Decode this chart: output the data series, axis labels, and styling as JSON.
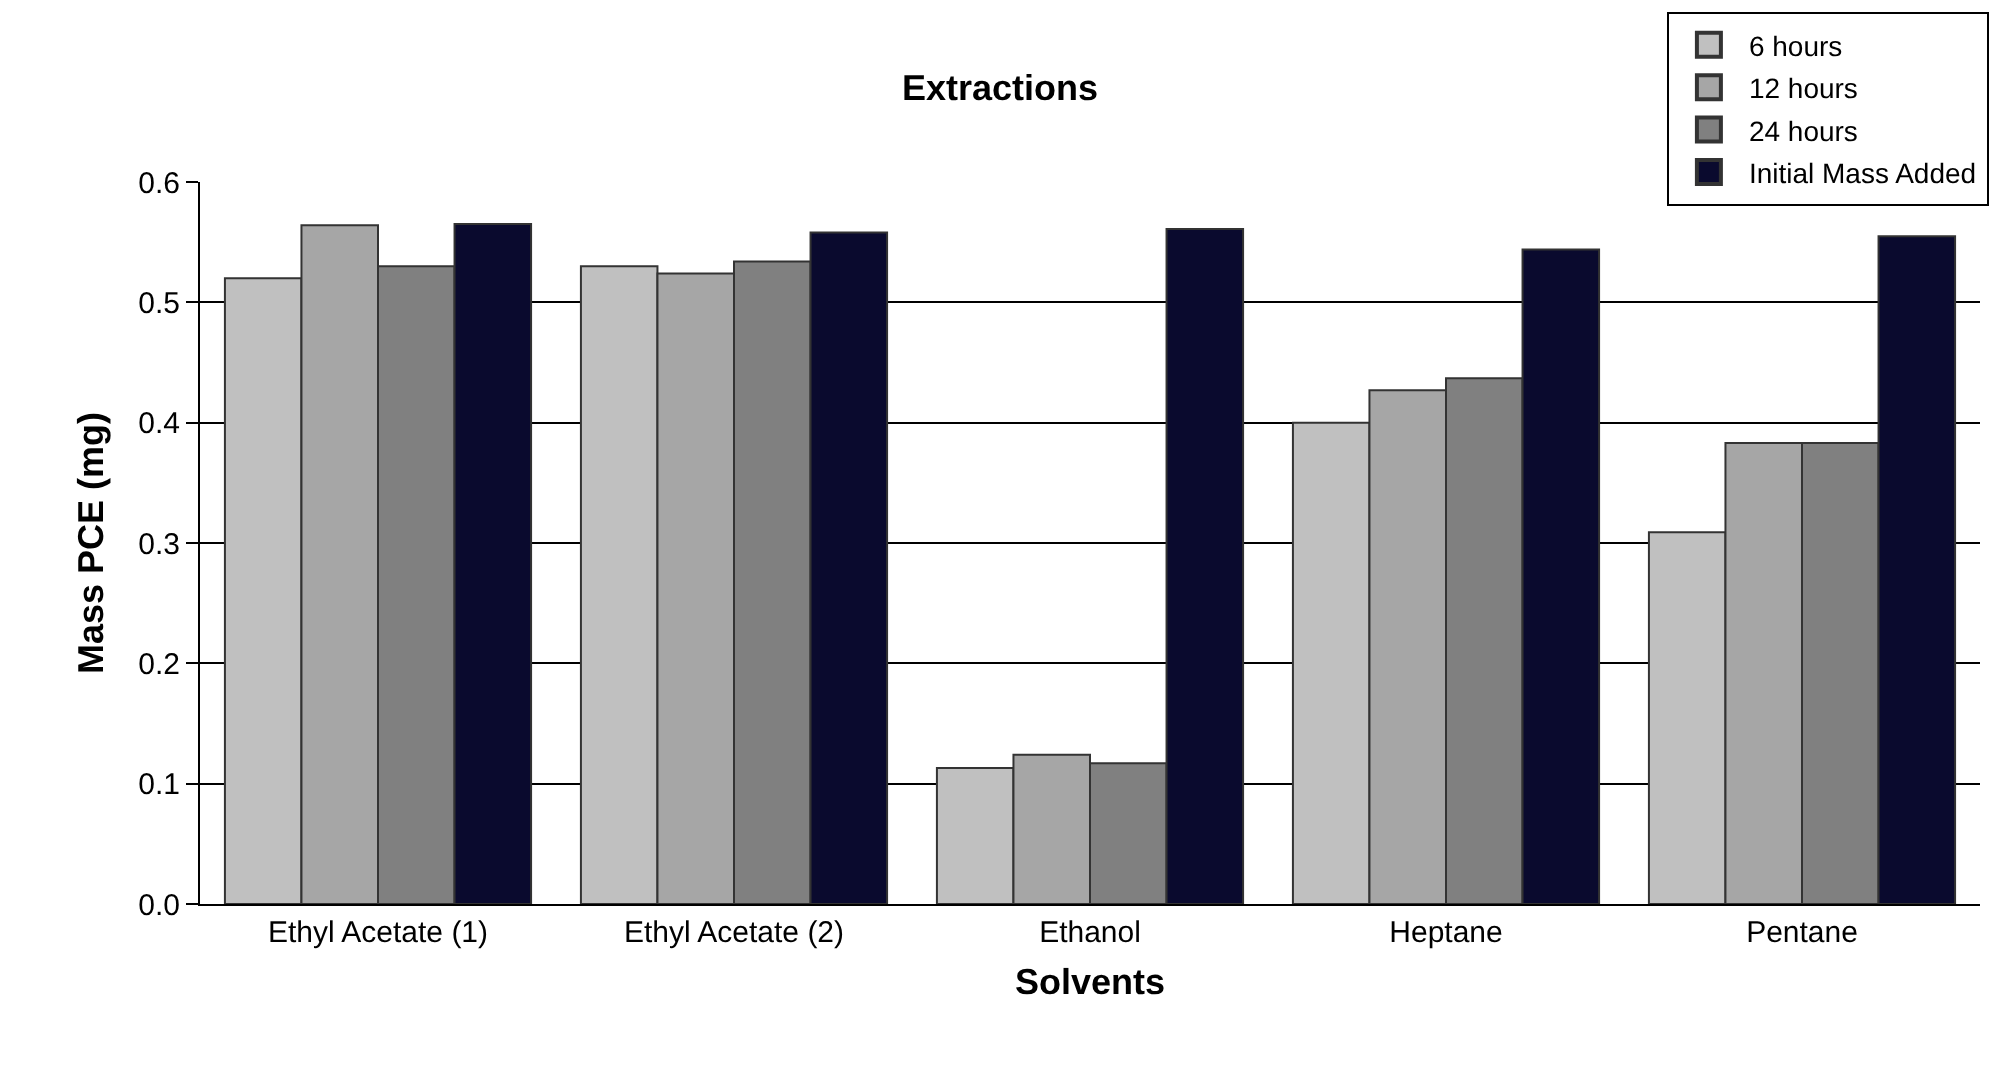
{
  "chart_data": {
    "type": "bar",
    "title": "Extractions",
    "xlabel": "Solvents",
    "ylabel": "Mass PCE (mg)",
    "categories": [
      "Ethyl Acetate (1)",
      "Ethyl Acetate (2)",
      "Ethanol",
      "Heptane",
      "Pentane"
    ],
    "series": [
      {
        "name": "6 hours",
        "color": "#c0c0c0",
        "values": [
          0.52,
          0.53,
          0.113,
          0.4,
          0.309
        ]
      },
      {
        "name": "12 hours",
        "color": "#a6a6a6",
        "values": [
          0.564,
          0.524,
          0.124,
          0.427,
          0.383
        ]
      },
      {
        "name": "24 hours",
        "color": "#808080",
        "values": [
          0.53,
          0.534,
          0.117,
          0.437,
          0.383
        ]
      },
      {
        "name": "Initial Mass Added",
        "color": "#0a0a2e",
        "values": [
          0.565,
          0.558,
          0.561,
          0.544,
          0.555
        ]
      }
    ],
    "ylim": [
      0,
      0.6
    ],
    "yticks": [
      {
        "value": 0,
        "label": "0.0"
      },
      0.1,
      0.2,
      0.3,
      0.4,
      0.5,
      0.6
    ],
    "grid": "y",
    "legend": "top right"
  }
}
